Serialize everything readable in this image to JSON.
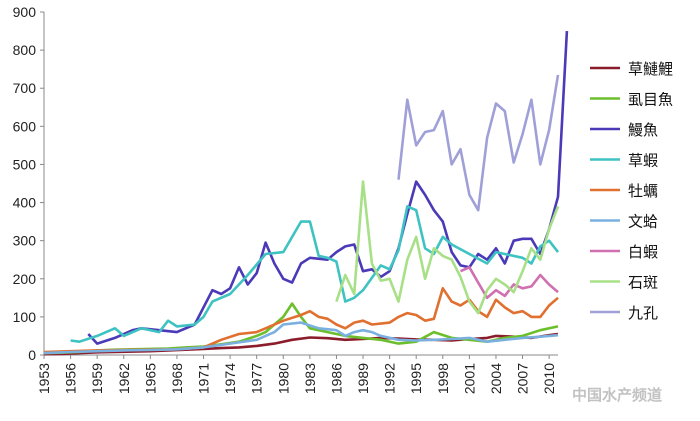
{
  "chart_data": {
    "type": "line",
    "title": "",
    "xlabel": "",
    "ylabel": "",
    "ylim": [
      0,
      900
    ],
    "yticks": [
      0,
      100,
      200,
      300,
      400,
      500,
      600,
      700,
      800,
      900
    ],
    "xlim": [
      1953,
      2011
    ],
    "xticks": [
      1953,
      1956,
      1959,
      1962,
      1965,
      1968,
      1971,
      1974,
      1977,
      1980,
      1983,
      1986,
      1989,
      1992,
      1995,
      1998,
      2001,
      2004,
      2007,
      2010
    ],
    "legend_position": "right",
    "grid": false,
    "series": [
      {
        "name": "草鰱鯉",
        "color": "#8b1c2c",
        "points": [
          [
            1953,
            2
          ],
          [
            1955,
            3
          ],
          [
            1957,
            5
          ],
          [
            1959,
            7
          ],
          [
            1961,
            8
          ],
          [
            1963,
            9
          ],
          [
            1965,
            10
          ],
          [
            1967,
            12
          ],
          [
            1969,
            14
          ],
          [
            1971,
            16
          ],
          [
            1973,
            18
          ],
          [
            1975,
            20
          ],
          [
            1977,
            24
          ],
          [
            1979,
            30
          ],
          [
            1981,
            40
          ],
          [
            1983,
            46
          ],
          [
            1985,
            44
          ],
          [
            1987,
            40
          ],
          [
            1989,
            42
          ],
          [
            1991,
            45
          ],
          [
            1993,
            43
          ],
          [
            1995,
            41
          ],
          [
            1997,
            40
          ],
          [
            1999,
            38
          ],
          [
            2001,
            42
          ],
          [
            2003,
            45
          ],
          [
            2004,
            50
          ],
          [
            2006,
            48
          ],
          [
            2008,
            45
          ],
          [
            2010,
            52
          ],
          [
            2011,
            55
          ]
        ]
      },
      {
        "name": "虱目魚",
        "color": "#6cbf2c",
        "points": [
          [
            1953,
            5
          ],
          [
            1955,
            6
          ],
          [
            1957,
            8
          ],
          [
            1959,
            12
          ],
          [
            1961,
            14
          ],
          [
            1963,
            15
          ],
          [
            1965,
            16
          ],
          [
            1967,
            17
          ],
          [
            1969,
            20
          ],
          [
            1971,
            22
          ],
          [
            1973,
            28
          ],
          [
            1975,
            35
          ],
          [
            1977,
            50
          ],
          [
            1978,
            60
          ],
          [
            1979,
            80
          ],
          [
            1980,
            100
          ],
          [
            1981,
            135
          ],
          [
            1982,
            100
          ],
          [
            1983,
            70
          ],
          [
            1985,
            60
          ],
          [
            1987,
            50
          ],
          [
            1989,
            45
          ],
          [
            1991,
            40
          ],
          [
            1993,
            30
          ],
          [
            1995,
            35
          ],
          [
            1997,
            60
          ],
          [
            1999,
            45
          ],
          [
            2001,
            40
          ],
          [
            2003,
            35
          ],
          [
            2005,
            45
          ],
          [
            2007,
            50
          ],
          [
            2009,
            65
          ],
          [
            2011,
            75
          ]
        ]
      },
      {
        "name": "鰻魚",
        "color": "#4a3ab8",
        "points": [
          [
            1958,
            55
          ],
          [
            1959,
            30
          ],
          [
            1961,
            45
          ],
          [
            1963,
            65
          ],
          [
            1964,
            70
          ],
          [
            1966,
            65
          ],
          [
            1968,
            60
          ],
          [
            1970,
            80
          ],
          [
            1972,
            170
          ],
          [
            1973,
            160
          ],
          [
            1974,
            175
          ],
          [
            1975,
            230
          ],
          [
            1976,
            185
          ],
          [
            1977,
            215
          ],
          [
            1978,
            295
          ],
          [
            1979,
            240
          ],
          [
            1980,
            200
          ],
          [
            1981,
            190
          ],
          [
            1982,
            240
          ],
          [
            1983,
            255
          ],
          [
            1985,
            250
          ],
          [
            1986,
            270
          ],
          [
            1987,
            285
          ],
          [
            1988,
            290
          ],
          [
            1989,
            220
          ],
          [
            1990,
            225
          ],
          [
            1991,
            205
          ],
          [
            1992,
            220
          ],
          [
            1993,
            280
          ],
          [
            1994,
            370
          ],
          [
            1995,
            455
          ],
          [
            1996,
            420
          ],
          [
            1997,
            380
          ],
          [
            1998,
            350
          ],
          [
            1999,
            270
          ],
          [
            2000,
            235
          ],
          [
            2001,
            230
          ],
          [
            2002,
            265
          ],
          [
            2003,
            250
          ],
          [
            2004,
            280
          ],
          [
            2005,
            240
          ],
          [
            2006,
            300
          ],
          [
            2007,
            305
          ],
          [
            2008,
            305
          ],
          [
            2009,
            265
          ],
          [
            2010,
            330
          ],
          [
            2011,
            415
          ],
          [
            2012,
            850
          ]
        ]
      },
      {
        "name": "草蝦",
        "color": "#3ec2c2",
        "points": [
          [
            1956,
            38
          ],
          [
            1957,
            35
          ],
          [
            1959,
            50
          ],
          [
            1961,
            70
          ],
          [
            1962,
            50
          ],
          [
            1964,
            70
          ],
          [
            1966,
            60
          ],
          [
            1967,
            90
          ],
          [
            1968,
            75
          ],
          [
            1970,
            80
          ],
          [
            1971,
            100
          ],
          [
            1972,
            140
          ],
          [
            1974,
            160
          ],
          [
            1976,
            210
          ],
          [
            1978,
            265
          ],
          [
            1980,
            270
          ],
          [
            1982,
            350
          ],
          [
            1983,
            350
          ],
          [
            1984,
            260
          ],
          [
            1985,
            255
          ],
          [
            1986,
            245
          ],
          [
            1987,
            140
          ],
          [
            1988,
            150
          ],
          [
            1989,
            170
          ],
          [
            1991,
            235
          ],
          [
            1992,
            225
          ],
          [
            1993,
            275
          ],
          [
            1994,
            390
          ],
          [
            1995,
            380
          ],
          [
            1996,
            280
          ],
          [
            1997,
            265
          ],
          [
            1998,
            310
          ],
          [
            1999,
            290
          ],
          [
            2001,
            265
          ],
          [
            2003,
            240
          ],
          [
            2004,
            270
          ],
          [
            2005,
            265
          ],
          [
            2007,
            255
          ],
          [
            2008,
            240
          ],
          [
            2009,
            285
          ],
          [
            2010,
            300
          ],
          [
            2011,
            270
          ]
        ]
      },
      {
        "name": "牡蠣",
        "color": "#e07030",
        "points": [
          [
            1953,
            8
          ],
          [
            1956,
            10
          ],
          [
            1959,
            12
          ],
          [
            1962,
            13
          ],
          [
            1965,
            14
          ],
          [
            1968,
            15
          ],
          [
            1971,
            20
          ],
          [
            1973,
            40
          ],
          [
            1975,
            55
          ],
          [
            1977,
            60
          ],
          [
            1978,
            70
          ],
          [
            1980,
            90
          ],
          [
            1982,
            105
          ],
          [
            1983,
            115
          ],
          [
            1984,
            100
          ],
          [
            1985,
            95
          ],
          [
            1986,
            80
          ],
          [
            1987,
            70
          ],
          [
            1988,
            85
          ],
          [
            1989,
            90
          ],
          [
            1990,
            80
          ],
          [
            1992,
            85
          ],
          [
            1993,
            100
          ],
          [
            1994,
            110
          ],
          [
            1995,
            105
          ],
          [
            1996,
            90
          ],
          [
            1997,
            95
          ],
          [
            1998,
            175
          ],
          [
            1999,
            140
          ],
          [
            2000,
            130
          ],
          [
            2001,
            145
          ],
          [
            2002,
            115
          ],
          [
            2003,
            100
          ],
          [
            2004,
            145
          ],
          [
            2005,
            125
          ],
          [
            2006,
            110
          ],
          [
            2007,
            115
          ],
          [
            2008,
            100
          ],
          [
            2009,
            100
          ],
          [
            2010,
            130
          ],
          [
            2011,
            150
          ]
        ]
      },
      {
        "name": "文蛤",
        "color": "#7ab0e0",
        "points": [
          [
            1953,
            5
          ],
          [
            1956,
            8
          ],
          [
            1959,
            10
          ],
          [
            1962,
            12
          ],
          [
            1965,
            13
          ],
          [
            1968,
            15
          ],
          [
            1971,
            20
          ],
          [
            1974,
            30
          ],
          [
            1977,
            40
          ],
          [
            1979,
            60
          ],
          [
            1980,
            80
          ],
          [
            1982,
            85
          ],
          [
            1984,
            70
          ],
          [
            1986,
            65
          ],
          [
            1987,
            50
          ],
          [
            1988,
            60
          ],
          [
            1989,
            65
          ],
          [
            1990,
            60
          ],
          [
            1991,
            50
          ],
          [
            1993,
            40
          ],
          [
            1995,
            38
          ],
          [
            1997,
            40
          ],
          [
            1999,
            42
          ],
          [
            2001,
            45
          ],
          [
            2003,
            35
          ],
          [
            2005,
            40
          ],
          [
            2007,
            45
          ],
          [
            2009,
            48
          ],
          [
            2011,
            52
          ]
        ]
      },
      {
        "name": "白蝦",
        "color": "#d070b0",
        "points": [
          [
            2000,
            220
          ],
          [
            2001,
            230
          ],
          [
            2002,
            190
          ],
          [
            2003,
            150
          ],
          [
            2004,
            170
          ],
          [
            2005,
            155
          ],
          [
            2006,
            185
          ],
          [
            2007,
            175
          ],
          [
            2008,
            180
          ],
          [
            2009,
            210
          ],
          [
            2010,
            185
          ],
          [
            2011,
            165
          ]
        ]
      },
      {
        "name": "石斑",
        "color": "#a8e088",
        "points": [
          [
            1986,
            140
          ],
          [
            1987,
            210
          ],
          [
            1988,
            160
          ],
          [
            1989,
            455
          ],
          [
            1990,
            240
          ],
          [
            1991,
            195
          ],
          [
            1992,
            200
          ],
          [
            1993,
            140
          ],
          [
            1994,
            250
          ],
          [
            1995,
            310
          ],
          [
            1996,
            200
          ],
          [
            1997,
            280
          ],
          [
            1998,
            260
          ],
          [
            1999,
            250
          ],
          [
            2000,
            205
          ],
          [
            2001,
            140
          ],
          [
            2002,
            110
          ],
          [
            2003,
            170
          ],
          [
            2004,
            200
          ],
          [
            2005,
            185
          ],
          [
            2006,
            165
          ],
          [
            2007,
            220
          ],
          [
            2008,
            280
          ],
          [
            2009,
            250
          ],
          [
            2010,
            330
          ],
          [
            2011,
            390
          ]
        ]
      },
      {
        "name": "九孔",
        "color": "#a0a0d8",
        "points": [
          [
            1993,
            460
          ],
          [
            1994,
            670
          ],
          [
            1995,
            550
          ],
          [
            1996,
            585
          ],
          [
            1997,
            590
          ],
          [
            1998,
            640
          ],
          [
            1999,
            500
          ],
          [
            2000,
            540
          ],
          [
            2001,
            420
          ],
          [
            2002,
            380
          ],
          [
            2003,
            570
          ],
          [
            2004,
            660
          ],
          [
            2005,
            640
          ],
          [
            2006,
            505
          ],
          [
            2007,
            580
          ],
          [
            2008,
            670
          ],
          [
            2009,
            500
          ],
          [
            2010,
            590
          ],
          [
            2011,
            735
          ]
        ]
      }
    ]
  },
  "watermark": {
    "text": "中国水产频道"
  }
}
